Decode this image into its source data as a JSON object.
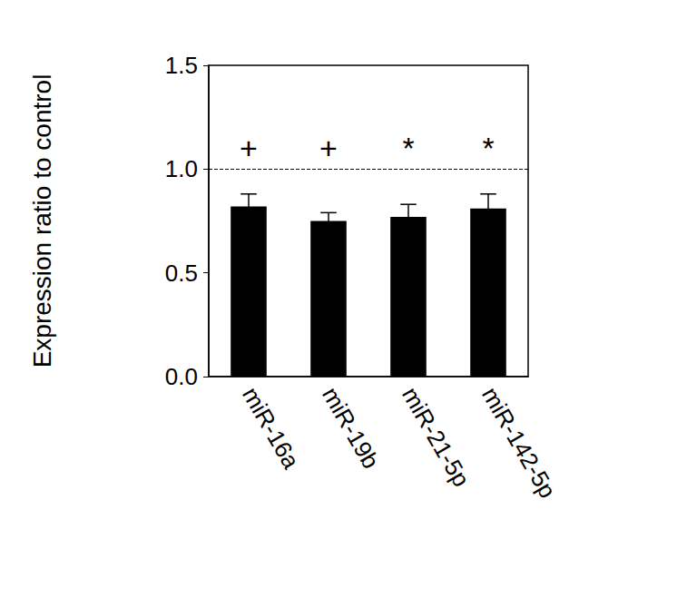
{
  "chart_data": {
    "type": "bar",
    "y_label": "Expression ratio to control",
    "categories": [
      "miR-16a",
      "miR-19b",
      "miR-21-5p",
      "miR-142-5p"
    ],
    "values": [
      0.82,
      0.75,
      0.77,
      0.81
    ],
    "errors": [
      0.06,
      0.04,
      0.06,
      0.07
    ],
    "significance": [
      "+",
      "+",
      "*",
      "*"
    ],
    "reference_line": {
      "value": 1,
      "line_style": "dashed"
    },
    "color": "#000000",
    "ylim": [
      0,
      1.5
    ],
    "yticks": [
      {
        "value": 0,
        "label": "0.0"
      },
      0.5,
      {
        "value": 1,
        "label": "1.0"
      },
      1.5
    ],
    "grid": false
  }
}
